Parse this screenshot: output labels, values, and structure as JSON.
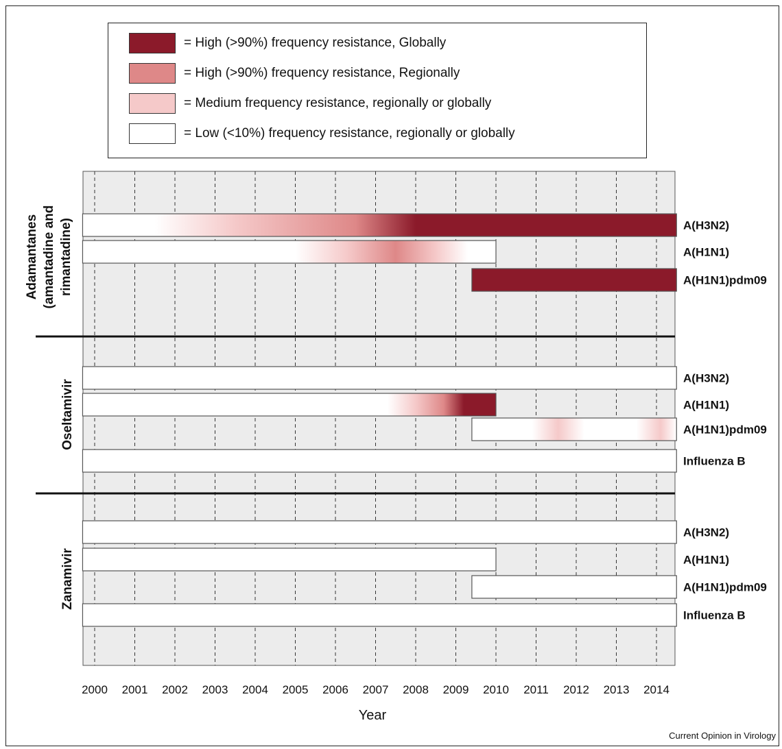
{
  "legend": {
    "items": [
      {
        "label": "= High (>90%) frequency resistance, Globally",
        "color": "#8b1a2a"
      },
      {
        "label": "= High (>90%) frequency resistance, Regionally",
        "color": "#de8888"
      },
      {
        "label": "= Medium frequency resistance, regionally or globally",
        "color": "#f5c9c9"
      },
      {
        "label": "= Low (<10%) frequency resistance, regionally or globally",
        "color": "#ffffff"
      }
    ]
  },
  "credit": "Current Opinion in Virology",
  "colors": {
    "global_high": "#8b1a2a",
    "regional_high": "#de8888",
    "medium": "#f5c9c9",
    "low": "#ffffff",
    "panel_bg": "#ececec"
  },
  "chart_data": {
    "type": "timeline",
    "xlabel": "Year",
    "x_ticks": [
      2000,
      2001,
      2002,
      2003,
      2004,
      2005,
      2006,
      2007,
      2008,
      2009,
      2010,
      2011,
      2012,
      2013,
      2014
    ],
    "x_range": [
      1999.7,
      2014.5
    ],
    "grid": true,
    "groups": [
      {
        "label_lines": [
          "Adamantanes",
          "(amantadine and",
          "rimantadine)"
        ],
        "rows": [
          {
            "name": "A(H3N2)",
            "start": 1999.7,
            "end": 2014.5,
            "stops": [
              [
                1999.7,
                "low"
              ],
              [
                2001.5,
                "low"
              ],
              [
                2003.5,
                "medium"
              ],
              [
                2006.5,
                "regional_high"
              ],
              [
                2008.0,
                "global_high"
              ],
              [
                2014.5,
                "global_high"
              ]
            ]
          },
          {
            "name": "A(H1N1)",
            "start": 1999.7,
            "end": 2010.0,
            "stops": [
              [
                1999.7,
                "low"
              ],
              [
                2005.0,
                "low"
              ],
              [
                2006.3,
                "medium"
              ],
              [
                2007.5,
                "regional_high"
              ],
              [
                2008.5,
                "medium"
              ],
              [
                2009.3,
                "low"
              ],
              [
                2010.0,
                "low"
              ]
            ]
          },
          {
            "name": "A(H1N1)pdm09",
            "start": 2009.4,
            "end": 2014.5,
            "stops": [
              [
                2009.4,
                "global_high"
              ],
              [
                2014.5,
                "global_high"
              ]
            ]
          }
        ]
      },
      {
        "label_lines": [
          "Oseltamivir"
        ],
        "rows": [
          {
            "name": "A(H3N2)",
            "start": 1999.7,
            "end": 2014.5,
            "stops": [
              [
                1999.7,
                "low"
              ],
              [
                2014.5,
                "low"
              ]
            ]
          },
          {
            "name": "A(H1N1)",
            "start": 1999.7,
            "end": 2010.0,
            "stops": [
              [
                1999.7,
                "low"
              ],
              [
                2007.3,
                "low"
              ],
              [
                2008.0,
                "medium"
              ],
              [
                2008.7,
                "regional_high"
              ],
              [
                2009.2,
                "global_high"
              ],
              [
                2010.0,
                "global_high"
              ]
            ]
          },
          {
            "name": "A(H1N1)pdm09",
            "start": 2009.4,
            "end": 2014.5,
            "stops": [
              [
                2009.4,
                "low"
              ],
              [
                2010.9,
                "low"
              ],
              [
                2011.55,
                "medium"
              ],
              [
                2012.2,
                "low"
              ],
              [
                2013.5,
                "low"
              ],
              [
                2014.1,
                "medium"
              ],
              [
                2014.5,
                "low"
              ]
            ]
          },
          {
            "name": "Influenza B",
            "start": 1999.7,
            "end": 2014.5,
            "stops": [
              [
                1999.7,
                "low"
              ],
              [
                2014.5,
                "low"
              ]
            ]
          }
        ]
      },
      {
        "label_lines": [
          "Zanamivir"
        ],
        "rows": [
          {
            "name": "A(H3N2)",
            "start": 1999.7,
            "end": 2014.5,
            "stops": [
              [
                1999.7,
                "low"
              ],
              [
                2014.5,
                "low"
              ]
            ]
          },
          {
            "name": "A(H1N1)",
            "start": 1999.7,
            "end": 2010.0,
            "stops": [
              [
                1999.7,
                "low"
              ],
              [
                2010.0,
                "low"
              ]
            ]
          },
          {
            "name": "A(H1N1)pdm09",
            "start": 2009.4,
            "end": 2014.5,
            "stops": [
              [
                2009.4,
                "low"
              ],
              [
                2014.5,
                "low"
              ]
            ]
          },
          {
            "name": "Influenza B",
            "start": 1999.7,
            "end": 2014.5,
            "stops": [
              [
                1999.7,
                "low"
              ],
              [
                2014.5,
                "low"
              ]
            ]
          }
        ]
      }
    ]
  }
}
